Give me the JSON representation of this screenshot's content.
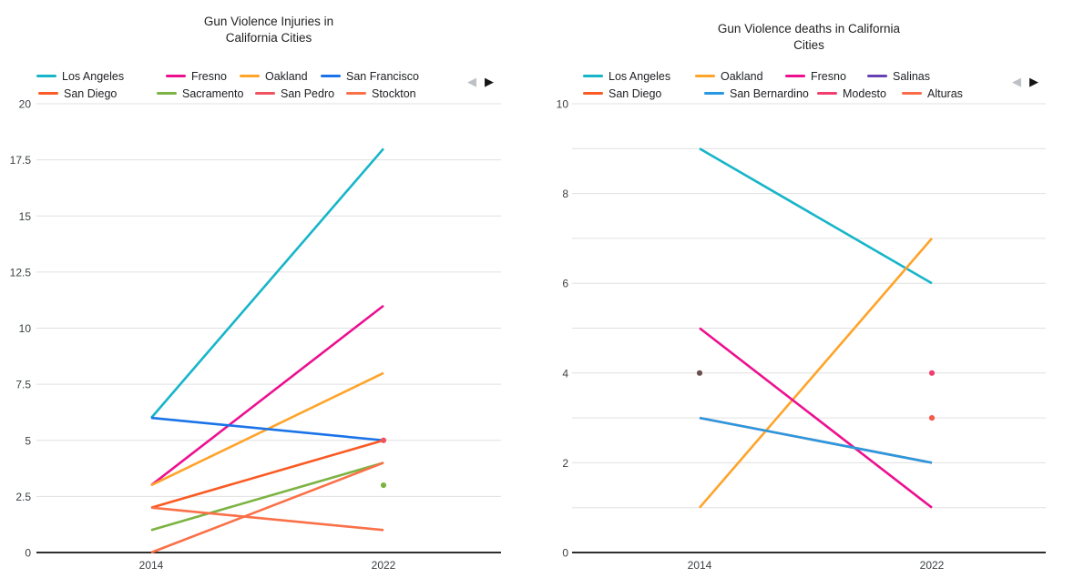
{
  "pagination": {
    "prev_icon": "◀",
    "next_icon": "▶"
  },
  "chart_data": [
    {
      "type": "line",
      "title": "Gun Violence Injuries in California Cities",
      "title_lines": [
        "Gun Violence Injuries in",
        "California Cities"
      ],
      "xlabel": "",
      "ylabel": "",
      "x_categories": [
        "2014",
        "2022"
      ],
      "y_axis": {
        "min": 0,
        "max": 20,
        "tick_step": 2.5,
        "grid_step": 2.5,
        "tick_labels": [
          "0",
          "2.5",
          "5",
          "7.5",
          "10",
          "12.5",
          "15",
          "17.5",
          "20"
        ]
      },
      "legend_position": "top",
      "grid": true,
      "legend": [
        {
          "label": "Los Angeles",
          "color": "#17B5C9"
        },
        {
          "label": "Fresno",
          "color": "#EC108F"
        },
        {
          "label": "Oakland",
          "color": "#FFA329"
        },
        {
          "label": "San Francisco",
          "color": "#1A73E8"
        },
        {
          "label": "San Diego",
          "color": "#FA5A23"
        },
        {
          "label": "Sacramento",
          "color": "#7CB342"
        },
        {
          "label": "San Pedro",
          "color": "#EF5360"
        },
        {
          "label": "Stockton",
          "color": "#FA7048"
        }
      ],
      "series": [
        {
          "name": "Los Angeles",
          "color": "#17B5C9",
          "values": {
            "2014": 6,
            "2022": 18
          }
        },
        {
          "name": "Fresno",
          "color": "#EC108F",
          "values": {
            "2014": 3,
            "2022": 11
          }
        },
        {
          "name": "Oakland",
          "color": "#FFA329",
          "values": {
            "2014": 3,
            "2022": 8
          }
        },
        {
          "name": "San Francisco",
          "color": "#1A73E8",
          "values": {
            "2014": 6,
            "2022": 5
          }
        },
        {
          "name": "San Diego",
          "color": "#FA5A23",
          "values": {
            "2014": 2,
            "2022": 5
          }
        },
        {
          "name": "Sacramento",
          "color": "#7CB342",
          "values": {
            "2014": 1,
            "2022": 4
          }
        },
        {
          "name": "Stockton",
          "color": "#FA7048",
          "values": {
            "2014": 2,
            "2022": 1
          }
        },
        {
          "name": "",
          "color": "#FA7048",
          "values": {
            "2014": 0,
            "2022": 4
          },
          "unlabeled": true
        },
        {
          "name": "San Pedro",
          "color": "#EF5360",
          "values": {
            "2022": 5
          },
          "marker": "point"
        },
        {
          "name": "",
          "color": "#7CB342",
          "values": {
            "2022": 3
          },
          "marker": "point",
          "unlabeled": true
        }
      ]
    },
    {
      "type": "line",
      "title": "Gun Violence deaths in California Cities",
      "title_lines": [
        "Gun Violence deaths in California",
        "Cities"
      ],
      "xlabel": "",
      "ylabel": "",
      "x_categories": [
        "2014",
        "2022"
      ],
      "y_axis": {
        "min": 0,
        "max": 10,
        "tick_step": 2,
        "grid_step": 1,
        "tick_labels": [
          "0",
          "2",
          "4",
          "6",
          "8",
          "10"
        ]
      },
      "legend_position": "top",
      "grid": true,
      "legend": [
        {
          "label": "Los Angeles",
          "color": "#17B5C9"
        },
        {
          "label": "Oakland",
          "color": "#FFA329"
        },
        {
          "label": "Fresno",
          "color": "#EC108F"
        },
        {
          "label": "Salinas",
          "color": "#6742B3"
        },
        {
          "label": "San Diego",
          "color": "#FA5A23"
        },
        {
          "label": "San Bernardino",
          "color": "#2998E3"
        },
        {
          "label": "Modesto",
          "color": "#F23D6F"
        },
        {
          "label": "Alturas",
          "color": "#FB6A4A"
        }
      ],
      "series": [
        {
          "name": "Los Angeles",
          "color": "#17B5C9",
          "values": {
            "2014": 9,
            "2022": 6
          }
        },
        {
          "name": "Oakland",
          "color": "#FFA329",
          "values": {
            "2014": 1,
            "2022": 7
          }
        },
        {
          "name": "Fresno",
          "color": "#EC108F",
          "values": {
            "2014": 5,
            "2022": 1
          }
        },
        {
          "name": "San Diego",
          "color": "#FA5A23",
          "values": {
            "2014": 3,
            "2022": 2
          }
        },
        {
          "name": "San Bernardino",
          "color": "#2998E3",
          "values": {
            "2014": 3,
            "2022": 2
          }
        },
        {
          "name": "Salinas",
          "color": "#6742B3",
          "dot_color": "#6B4E4E",
          "values": {
            "2014": 4
          },
          "marker": "point"
        },
        {
          "name": "Modesto",
          "color": "#F23D6F",
          "values": {
            "2022": 4
          },
          "marker": "point"
        },
        {
          "name": "Alturas",
          "color": "#FB6A4A",
          "dot_color": "#F4594A",
          "values": {
            "2022": 3
          },
          "marker": "point"
        }
      ]
    }
  ]
}
